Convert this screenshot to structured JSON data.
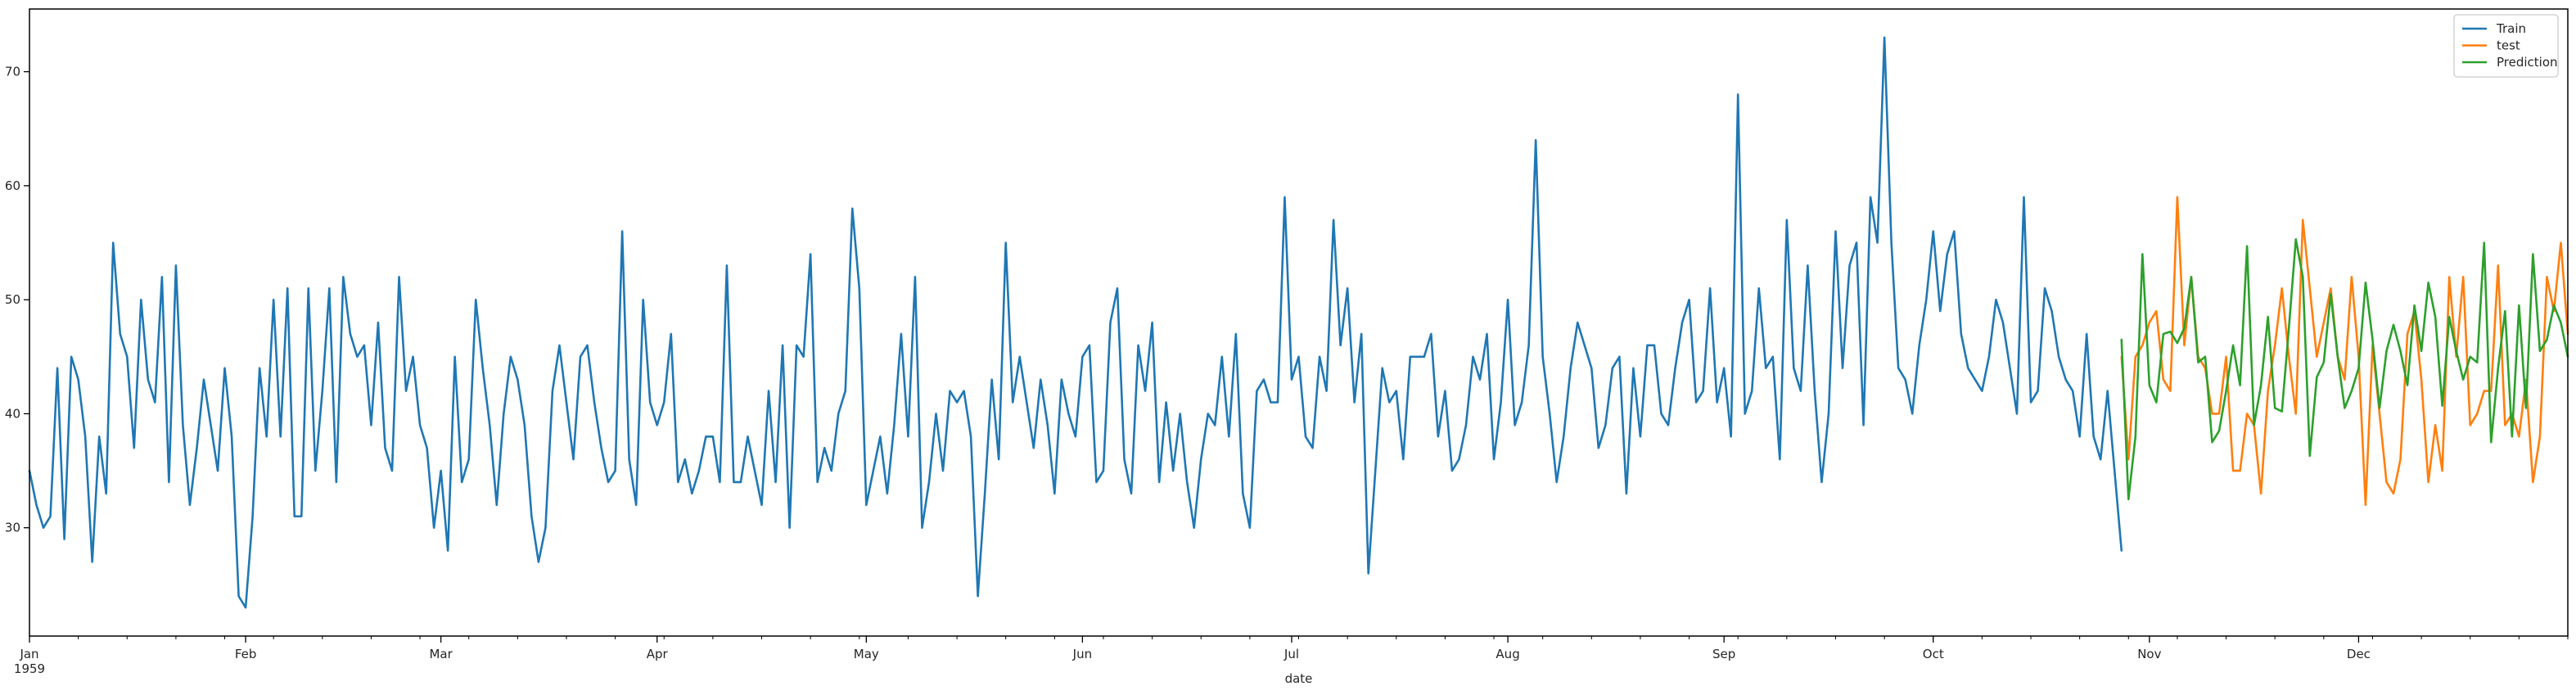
{
  "chart_data": {
    "type": "line",
    "xlabel": "date",
    "ylabel": "",
    "x_range": [
      "1959-01-01",
      "1959-12-31"
    ],
    "ylim": [
      20.5,
      75.5
    ],
    "y_ticks": [
      30,
      40,
      50,
      60,
      70
    ],
    "x_ticks": [
      {
        "date": "1959-01-01",
        "label": "Jan",
        "sublabel": "1959"
      },
      {
        "date": "1959-02-01",
        "label": "Feb",
        "sublabel": ""
      },
      {
        "date": "1959-03-01",
        "label": "Mar",
        "sublabel": ""
      },
      {
        "date": "1959-04-01",
        "label": "Apr",
        "sublabel": ""
      },
      {
        "date": "1959-05-01",
        "label": "May",
        "sublabel": ""
      },
      {
        "date": "1959-06-01",
        "label": "Jun",
        "sublabel": ""
      },
      {
        "date": "1959-07-01",
        "label": "Jul",
        "sublabel": ""
      },
      {
        "date": "1959-08-01",
        "label": "Aug",
        "sublabel": ""
      },
      {
        "date": "1959-09-01",
        "label": "Sep",
        "sublabel": ""
      },
      {
        "date": "1959-10-01",
        "label": "Oct",
        "sublabel": ""
      },
      {
        "date": "1959-11-01",
        "label": "Nov",
        "sublabel": ""
      },
      {
        "date": "1959-12-01",
        "label": "Dec",
        "sublabel": ""
      }
    ],
    "legend_position": "top-right",
    "grid": false,
    "series": [
      {
        "name": "Train",
        "color": "#1f77b4",
        "start_date": "1959-01-01",
        "values": [
          35,
          32,
          30,
          31,
          44,
          29,
          45,
          43,
          38,
          27,
          38,
          33,
          55,
          47,
          45,
          37,
          50,
          43,
          41,
          52,
          34,
          53,
          39,
          32,
          37,
          43,
          39,
          35,
          44,
          38,
          24,
          23,
          31,
          44,
          38,
          50,
          38,
          51,
          31,
          31,
          51,
          35,
          42,
          51,
          34,
          52,
          47,
          45,
          46,
          39,
          48,
          37,
          35,
          52,
          42,
          45,
          39,
          37,
          30,
          35,
          28,
          45,
          34,
          36,
          50,
          44,
          39,
          32,
          40,
          45,
          43,
          39,
          31,
          27,
          30,
          42,
          46,
          41,
          36,
          45,
          46,
          41,
          37,
          34,
          35,
          56,
          36,
          32,
          50,
          41,
          39,
          41,
          47,
          34,
          36,
          33,
          35,
          38,
          38,
          34,
          53,
          34,
          34,
          38,
          35,
          32,
          42,
          34,
          46,
          30,
          46,
          45,
          54,
          34,
          37,
          35,
          40,
          42,
          58,
          51,
          32,
          35,
          38,
          33,
          39,
          47,
          38,
          52,
          30,
          34,
          40,
          35,
          42,
          41,
          42,
          38,
          24,
          33,
          43,
          36,
          55,
          41,
          45,
          41,
          37,
          43,
          39,
          33,
          43,
          40,
          38,
          45,
          46,
          34,
          35,
          48,
          51,
          36,
          33,
          46,
          42,
          48,
          34,
          41,
          35,
          40,
          34,
          30,
          36,
          40,
          39,
          45,
          38,
          47,
          33,
          30,
          42,
          43,
          41,
          41,
          59,
          43,
          45,
          38,
          37,
          45,
          42,
          57,
          46,
          51,
          41,
          47,
          26,
          35,
          44,
          41,
          42,
          36,
          45,
          45,
          45,
          47,
          38,
          42,
          35,
          36,
          39,
          45,
          43,
          47,
          36,
          41,
          50,
          39,
          41,
          46,
          64,
          45,
          40,
          34,
          38,
          44,
          48,
          46,
          44,
          37,
          39,
          44,
          45,
          33,
          44,
          38,
          46,
          46,
          40,
          39,
          44,
          48,
          50,
          41,
          42,
          51,
          41,
          44,
          38,
          68,
          40,
          42,
          51,
          44,
          45,
          36,
          57,
          44,
          42,
          53,
          42,
          34,
          40,
          56,
          44,
          53,
          55,
          39,
          59,
          55,
          73,
          55,
          44,
          43,
          40,
          46,
          50,
          56,
          49,
          54,
          56,
          47,
          44,
          43,
          42,
          45,
          50,
          48,
          44,
          40,
          59,
          41,
          42,
          51,
          49,
          45,
          43,
          42,
          38,
          47,
          38,
          36,
          42,
          35,
          28
        ]
      },
      {
        "name": "test",
        "color": "#ff7f0e",
        "start_date": "1959-10-28",
        "values": [
          45,
          36,
          45,
          46,
          48,
          49,
          43,
          42,
          59,
          46,
          52,
          45,
          44,
          40,
          40,
          45,
          35,
          35,
          40,
          39,
          33,
          42,
          46,
          51,
          45,
          40,
          57,
          51,
          45,
          48,
          51,
          45,
          43,
          52,
          45,
          32,
          46,
          40,
          34,
          33,
          36,
          47,
          49,
          43,
          34,
          39,
          35,
          52,
          45,
          52,
          39,
          40,
          42,
          42,
          53,
          39,
          40,
          38,
          43,
          34,
          38,
          52,
          49,
          55,
          47
        ]
      },
      {
        "name": "Prediction",
        "color": "#2ca02c",
        "start_date": "1959-10-28",
        "values": [
          46.5,
          32.5,
          38,
          54,
          42.5,
          41,
          47,
          47.2,
          46.2,
          47.5,
          52,
          44.5,
          45,
          37.5,
          38.5,
          42,
          46,
          42.5,
          54.7,
          39,
          42.5,
          48.5,
          40.5,
          40.2,
          47.5,
          55.3,
          52,
          36.3,
          43.2,
          44.5,
          50.5,
          45,
          40.5,
          42,
          44,
          51.5,
          46.5,
          40.5,
          45.5,
          47.8,
          45.5,
          42.5,
          49.5,
          45.5,
          51.5,
          48.5,
          40.7,
          48.5,
          45.5,
          43,
          45,
          44.5,
          55,
          37.5,
          44,
          49,
          38,
          49.5,
          40.5,
          54,
          45.5,
          46.5,
          49.5,
          48,
          45
        ]
      }
    ]
  }
}
